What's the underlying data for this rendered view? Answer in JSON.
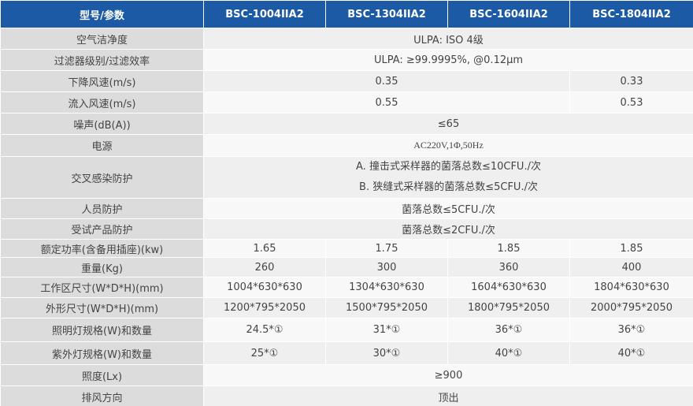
{
  "table": {
    "header": [
      "型号/参数",
      "BSC-1004IIA2",
      "BSC-1304IIA2",
      "BSC-1604IIA2",
      "BSC-1804IIA2"
    ],
    "rows": [
      {
        "label": "空气洁净度",
        "cells": [
          "ULPA: ISO 4级"
        ]
      },
      {
        "label": "过滤器级别/过滤效率",
        "cells": [
          "ULPA: ≥99.9995%, @0.12μm"
        ]
      },
      {
        "label": "下降风速(m/s)",
        "cells": [
          "0.35",
          "0.33"
        ]
      },
      {
        "label": "流入风速(m/s)",
        "cells": [
          "0.55",
          "0.53"
        ]
      },
      {
        "label": "噪声(dB(A))",
        "cells": [
          "≤65"
        ]
      },
      {
        "label": "电源",
        "cells": [
          "AC220V,1Φ,50Hz"
        ]
      },
      {
        "label": "交叉感染防护",
        "cells": [
          [
            "A. 撞击式采样器的菌落总数≤10CFU./次",
            "B. 狭缝式采样器的菌落总数≤5CFU./次"
          ]
        ]
      },
      {
        "label": "人员防护",
        "cells": [
          "菌落总数≤5CFU./次"
        ]
      },
      {
        "label": "受试产品防护",
        "cells": [
          "菌落总数≤2CFU./次"
        ]
      },
      {
        "label": "额定功率(含备用插座)(kw)",
        "cells": [
          "1.65",
          "1.75",
          "1.85",
          "1.85"
        ]
      },
      {
        "label": "重量(Kg)",
        "cells": [
          "260",
          "300",
          "360",
          "400"
        ]
      },
      {
        "label": "工作区尺寸(W*D*H)(mm)",
        "cells": [
          "1004*630*630",
          "1304*630*630",
          "1604*630*630",
          "1804*630*630"
        ]
      },
      {
        "label": "外形尺寸(W*D*H)(mm)",
        "cells": [
          "1200*795*2050",
          "1500*795*2050",
          "1800*795*2050",
          "2000*795*2050"
        ]
      },
      {
        "label": "照明灯规格(W)和数量",
        "cells": [
          "24.5*①",
          "31*①",
          "36*①",
          "36*①"
        ]
      },
      {
        "label": "紫外灯规格(W)和数量",
        "cells": [
          "25*①",
          "30*①",
          "40*①",
          "40*①"
        ]
      },
      {
        "label": "照度(Lx)",
        "cells": [
          "≥900"
        ]
      },
      {
        "label": "排风方向",
        "cells": [
          "顶出"
        ]
      }
    ]
  }
}
